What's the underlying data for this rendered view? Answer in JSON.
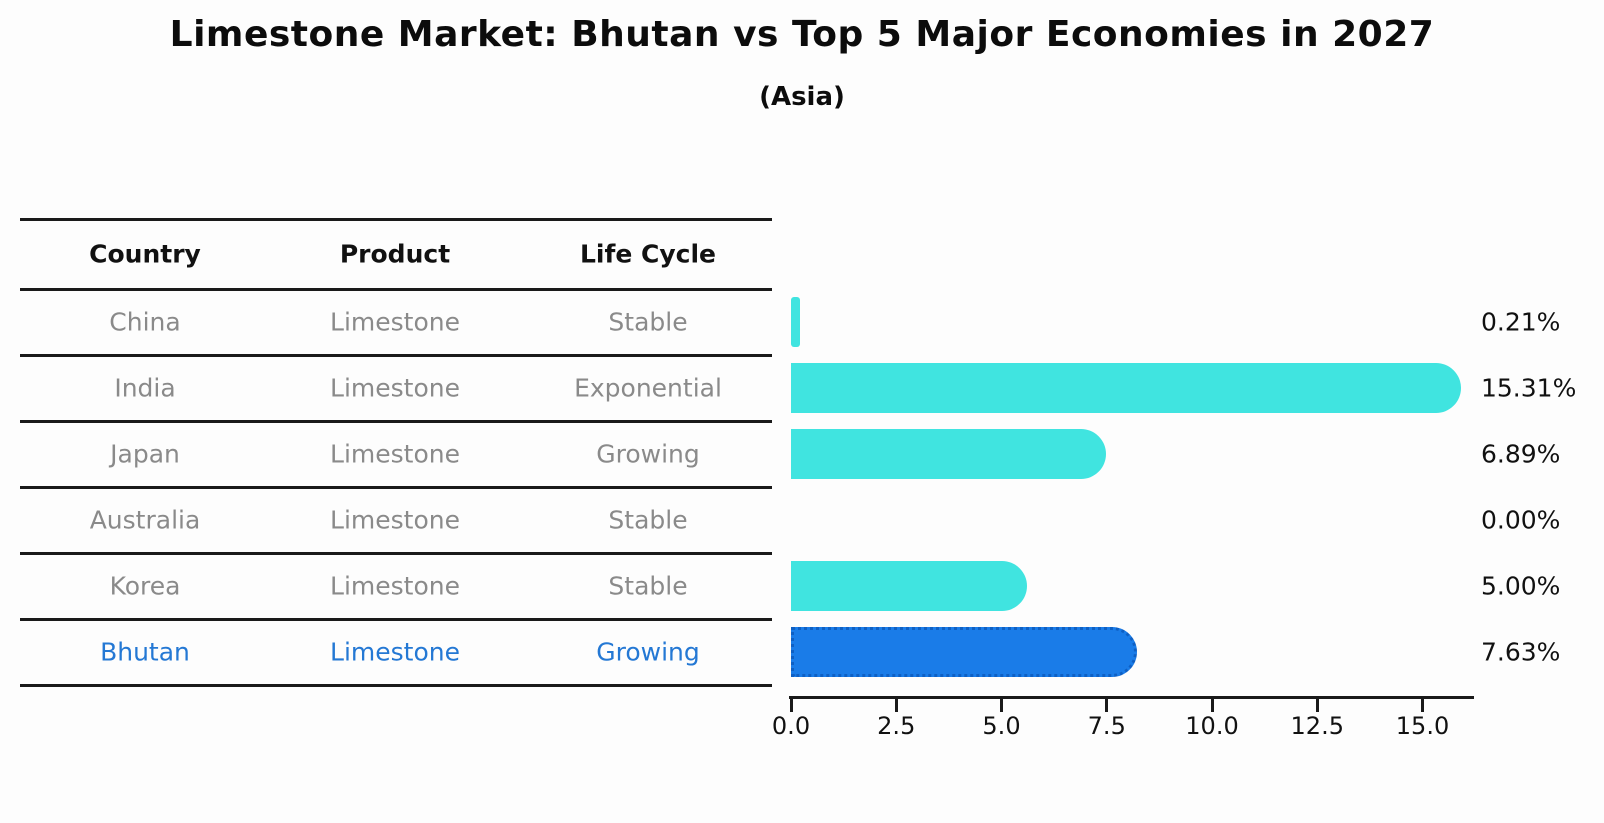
{
  "title": "Limestone Market: Bhutan vs Top 5 Major Economies in 2027",
  "subtitle": "(Asia)",
  "table": {
    "headers": [
      "Country",
      "Product",
      "Life Cycle"
    ]
  },
  "rows": [
    {
      "country": "China",
      "product": "Limestone",
      "life_cycle": "Stable",
      "value": 0.21,
      "label": "0.21%",
      "highlight": false
    },
    {
      "country": "India",
      "product": "Limestone",
      "life_cycle": "Exponential",
      "value": 15.31,
      "label": "15.31%",
      "highlight": false
    },
    {
      "country": "Japan",
      "product": "Limestone",
      "life_cycle": "Growing",
      "value": 6.89,
      "label": "6.89%",
      "highlight": false
    },
    {
      "country": "Australia",
      "product": "Limestone",
      "life_cycle": "Stable",
      "value": 0.0,
      "label": "0.00%",
      "highlight": false
    },
    {
      "country": "Korea",
      "product": "Limestone",
      "life_cycle": "Stable",
      "value": 5.0,
      "label": "5.00%",
      "highlight": false
    },
    {
      "country": "Bhutan",
      "product": "Limestone",
      "life_cycle": "Growing",
      "value": 7.63,
      "label": "7.63%",
      "highlight": true
    }
  ],
  "axis": {
    "ticks": [
      "0.0",
      "2.5",
      "5.0",
      "7.5",
      "10.0",
      "12.5",
      "15.0"
    ]
  },
  "colors": {
    "bar": "#40E4E0",
    "highlight_bar": "#1A7CE8",
    "highlight_border": "#0E60C4",
    "highlight_text": "#2478D4",
    "row_text": "#8A8A8A",
    "header_text": "#111111",
    "line": "#1A1A1A"
  },
  "chart_data": {
    "type": "bar",
    "orientation": "horizontal",
    "title": "Limestone Market: Bhutan vs Top 5 Major Economies in 2027",
    "subtitle": "(Asia)",
    "categories": [
      "China",
      "India",
      "Japan",
      "Australia",
      "Korea",
      "Bhutan"
    ],
    "values": [
      0.21,
      15.31,
      6.89,
      0.0,
      5.0,
      7.63
    ],
    "value_labels": [
      "0.21%",
      "15.31%",
      "6.89%",
      "0.00%",
      "5.00%",
      "7.63%"
    ],
    "xlabel": "",
    "ylabel": "",
    "xlim": [
      0,
      16.2
    ],
    "x_ticks": [
      0.0,
      2.5,
      5.0,
      7.5,
      10.0,
      12.5,
      15.0
    ],
    "grid": false,
    "legend": "none",
    "highlighted_category": "Bhutan",
    "table_columns": [
      "Country",
      "Product",
      "Life Cycle"
    ],
    "table_rows": [
      [
        "China",
        "Limestone",
        "Stable"
      ],
      [
        "India",
        "Limestone",
        "Exponential"
      ],
      [
        "Japan",
        "Limestone",
        "Growing"
      ],
      [
        "Australia",
        "Limestone",
        "Stable"
      ],
      [
        "Korea",
        "Limestone",
        "Stable"
      ],
      [
        "Bhutan",
        "Limestone",
        "Growing"
      ]
    ]
  }
}
